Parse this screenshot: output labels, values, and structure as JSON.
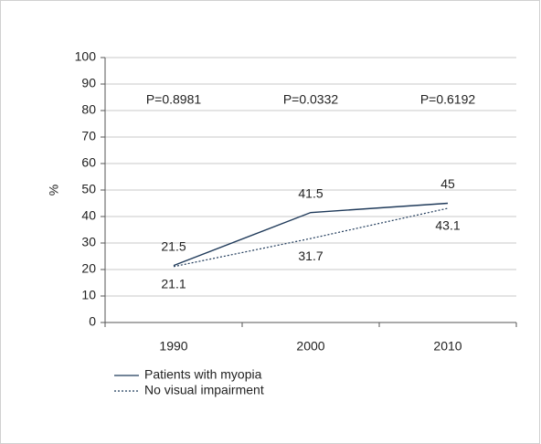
{
  "chart_data": {
    "type": "line",
    "y_label": "%",
    "categories": [
      "1990",
      "2000",
      "2010"
    ],
    "series": [
      {
        "name": "Patients with myopia",
        "color": "#1f3a5a",
        "dash": "solid",
        "values": [
          21.5,
          41.5,
          45
        ]
      },
      {
        "name": "No visual impairment",
        "color": "#1f3a5a",
        "dash": "dotted",
        "values": [
          21.1,
          31.7,
          43.1
        ]
      }
    ],
    "annotations": [
      "P=0.8981",
      "P=0.0332",
      "P=0.6192"
    ],
    "ylim": [
      0,
      100
    ],
    "yticks": [
      0,
      10,
      20,
      30,
      40,
      50,
      60,
      70,
      80,
      90,
      100
    ],
    "grid": true,
    "legend": "bottom-left"
  }
}
